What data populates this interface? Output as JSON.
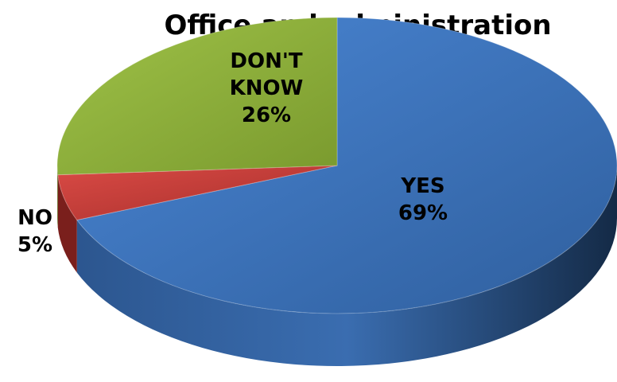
{
  "chart_data": {
    "type": "pie",
    "title": "Office and administration",
    "slices": [
      {
        "label": "YES",
        "value": 69,
        "value_label": "69%",
        "color": "#3f7ac6",
        "side_color": "#1f3c63"
      },
      {
        "label": "NO",
        "value": 5,
        "value_label": "5%",
        "color": "#c43b37",
        "side_color": "#7a1f1c"
      },
      {
        "label": "DON'T KNOW",
        "label_lines": [
          "DON'T",
          "KNOW"
        ],
        "value": 26,
        "value_label": "26%",
        "color": "#92b43c",
        "side_color": "#5a7420"
      }
    ],
    "style": "3d-tilted",
    "legend": "none"
  }
}
